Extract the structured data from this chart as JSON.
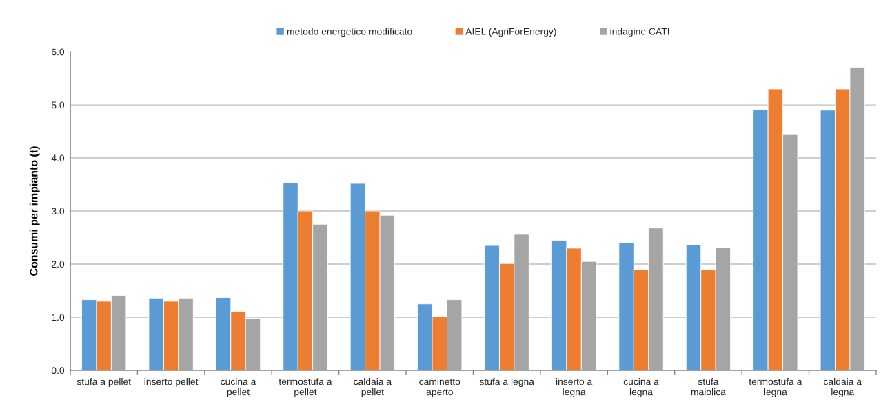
{
  "chart_data": {
    "type": "bar",
    "ylabel": "Consumi per impianto (t)",
    "categories": [
      "stufa a pellet",
      "inserto pellet",
      "cucina a\npellet",
      "termostufa a\npellet",
      "caldaia a\npellet",
      "caminetto\naperto",
      "stufa a legna",
      "inserto a\nlegna",
      "cucina a\nlegna",
      "stufa\nmaiolica",
      "termostufa a\nlegna",
      "caldaia a\nlegna"
    ],
    "series": [
      {
        "name": "metodo energetico modificato",
        "color": "#5b9bd5",
        "values": [
          1.33,
          1.36,
          1.37,
          3.53,
          3.52,
          1.25,
          2.35,
          2.45,
          2.4,
          2.36,
          4.91,
          4.9
        ]
      },
      {
        "name": "AIEL (AgriForEnergy)",
        "color": "#ed7d31",
        "values": [
          1.3,
          1.3,
          1.11,
          3.0,
          3.0,
          1.01,
          2.01,
          2.3,
          1.89,
          1.89,
          5.3,
          5.3
        ]
      },
      {
        "name": "indagine CATI",
        "color": "#a5a5a5",
        "values": [
          1.41,
          1.36,
          0.97,
          2.75,
          2.92,
          1.33,
          2.56,
          2.05,
          2.68,
          2.31,
          4.44,
          5.71
        ]
      }
    ],
    "ylim": [
      0,
      6
    ],
    "yticks": [
      {
        "value": 0,
        "label": "0.0"
      },
      {
        "value": 1,
        "label": "1.0"
      },
      {
        "value": 2,
        "label": "2.0"
      },
      {
        "value": 3,
        "label": "3.0"
      },
      {
        "value": 4,
        "label": "4.0"
      },
      {
        "value": 5,
        "label": "5.0"
      },
      {
        "value": 6,
        "label": "6.0"
      }
    ],
    "grid": "y",
    "legend": "top"
  }
}
